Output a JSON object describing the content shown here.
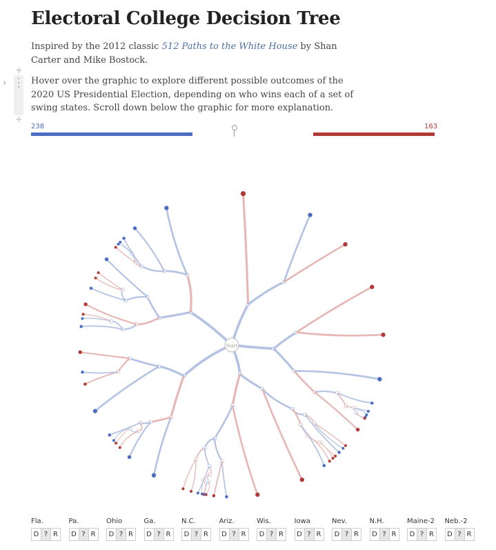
{
  "article": {
    "title": "Electoral College Decision Tree",
    "intro_prefix": "Inspired by the 2012 classic ",
    "intro_link": "512 Paths to the White House",
    "intro_suffix": " by Shan Carter and Mike Bostock.",
    "instructions": "Hover over the graphic to explore different possible outcomes of the 2020 US Presidential Election, depending on who wins each of a set of swing states. Scroll down below the graphic for more explanation."
  },
  "tally": {
    "dem_votes": "238",
    "rep_votes": "163",
    "dem_fraction": 0.4,
    "rep_fraction": 0.3,
    "dem_color": "#4a6cc2",
    "rep_color": "#b23a36"
  },
  "tree": {
    "root_label": "Start",
    "dem_color": "#4a6cc2",
    "rep_color": "#b23a36"
  },
  "states": [
    {
      "name": "Fla."
    },
    {
      "name": "Pa."
    },
    {
      "name": "Ohio"
    },
    {
      "name": "Ga."
    },
    {
      "name": "N.C."
    },
    {
      "name": "Ariz."
    },
    {
      "name": "Wis."
    },
    {
      "name": "Iowa"
    },
    {
      "name": "Nev."
    },
    {
      "name": "N.H."
    },
    {
      "name": "Maine-2"
    },
    {
      "name": "Neb.-2"
    }
  ],
  "choice_labels": {
    "dem": "D",
    "undecided": "?",
    "rep": "R"
  }
}
